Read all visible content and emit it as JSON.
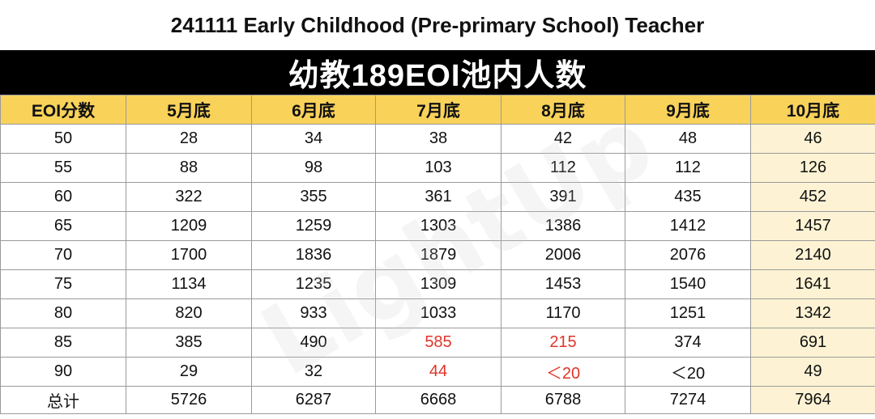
{
  "title": "241111 Early Childhood (Pre-primary School) Teacher",
  "banner": "幼教189EOI池内人数",
  "watermark": "LightUp",
  "headers": [
    "EOI分数",
    "5月底",
    "6月底",
    "7月底",
    "8月底",
    "9月底",
    "10月底"
  ],
  "rows": [
    [
      "50",
      "28",
      "34",
      "38",
      "42",
      "48",
      "46"
    ],
    [
      "55",
      "88",
      "98",
      "103",
      "112",
      "112",
      "126"
    ],
    [
      "60",
      "322",
      "355",
      "361",
      "391",
      "435",
      "452"
    ],
    [
      "65",
      "1209",
      "1259",
      "1303",
      "1386",
      "1412",
      "1457"
    ],
    [
      "70",
      "1700",
      "1836",
      "1879",
      "2006",
      "2076",
      "2140"
    ],
    [
      "75",
      "1134",
      "1235",
      "1309",
      "1453",
      "1540",
      "1641"
    ],
    [
      "80",
      "820",
      "933",
      "1033",
      "1170",
      "1251",
      "1342"
    ],
    [
      "85",
      "385",
      "490",
      "585",
      "215",
      "374",
      "691"
    ],
    [
      "90",
      "29",
      "32",
      "44",
      "＜20",
      "＜20",
      "49"
    ],
    [
      "总计",
      "5726",
      "6287",
      "6668",
      "6788",
      "7274",
      "7964"
    ]
  ],
  "colors": {
    "header_bg": "#f9d25a",
    "last_col_bg": "#fdf3d4",
    "highlight_red": "#e0342a",
    "banner_bg": "#000000"
  }
}
